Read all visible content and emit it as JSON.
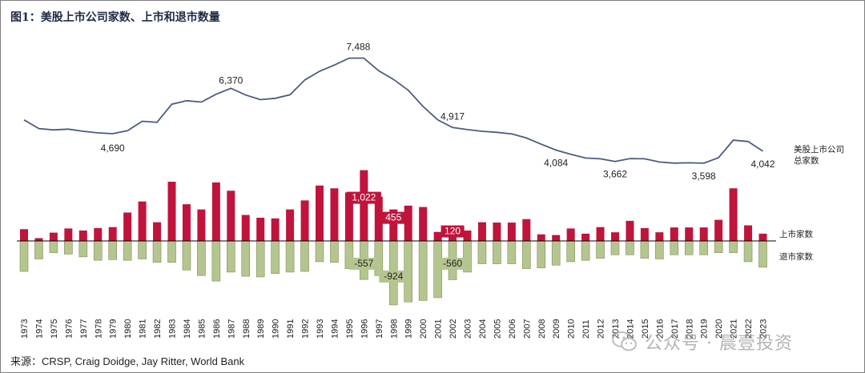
{
  "title": "图1：美股上市公司家数、上市和退市数量",
  "source": "来源：CRSP, Craig Doidge, Jay Ritter, World Bank",
  "watermark": "公众号 · 晨壹投资",
  "colors": {
    "line": "#4a5d7e",
    "listings": "#c0143c",
    "delistings": "#b5c58f",
    "delisting_edge": "#7e8f55",
    "axis": "#000000"
  },
  "icons": {
    "watermark": "wechat-icon"
  },
  "chart_data": {
    "type": "bar+line",
    "x": [
      "1973",
      "1974",
      "1975",
      "1976",
      "1977",
      "1978",
      "1979",
      "1980",
      "1981",
      "1982",
      "1983",
      "1984",
      "1985",
      "1986",
      "1987",
      "1988",
      "1989",
      "1990",
      "1991",
      "1992",
      "1993",
      "1994",
      "1995",
      "1996",
      "1997",
      "1998",
      "1999",
      "2000",
      "2001",
      "2002",
      "2003",
      "2004",
      "2005",
      "2006",
      "2007",
      "2008",
      "2009",
      "2010",
      "2011",
      "2012",
      "2013",
      "2014",
      "2015",
      "2016",
      "2017",
      "2018",
      "2019",
      "2020",
      "2021",
      "2022",
      "2023"
    ],
    "series": [
      {
        "name": "美股上市公司总家数",
        "type": "line",
        "values": [
          5200,
          4880,
          4830,
          4860,
          4780,
          4720,
          4690,
          4800,
          5150,
          5110,
          5780,
          5910,
          5860,
          6150,
          6370,
          6120,
          5950,
          6000,
          6130,
          6680,
          7000,
          7230,
          7488,
          7488,
          7020,
          6700,
          6300,
          5700,
          5200,
          4917,
          4840,
          4780,
          4740,
          4680,
          4530,
          4300,
          4084,
          3930,
          3790,
          3760,
          3662,
          3770,
          3760,
          3640,
          3600,
          3610,
          3598,
          3800,
          4450,
          4400,
          4042
        ]
      },
      {
        "name": "上市家数",
        "type": "bar",
        "values": [
          170,
          40,
          120,
          180,
          150,
          185,
          200,
          410,
          570,
          270,
          855,
          530,
          455,
          845,
          725,
          375,
          335,
          325,
          455,
          585,
          800,
          760,
          700,
          1022,
          640,
          455,
          510,
          490,
          130,
          120,
          150,
          270,
          265,
          265,
          315,
          95,
          85,
          180,
          105,
          200,
          125,
          290,
          185,
          125,
          195,
          195,
          195,
          305,
          760,
          225,
          105
        ]
      },
      {
        "name": "退市家数",
        "type": "bar",
        "values": [
          -440,
          -260,
          -170,
          -190,
          -230,
          -280,
          -270,
          -280,
          -260,
          -310,
          -310,
          -420,
          -500,
          -580,
          -450,
          -510,
          -520,
          -470,
          -450,
          -440,
          -300,
          -310,
          -400,
          -557,
          -500,
          -924,
          -880,
          -860,
          -820,
          -560,
          -450,
          -330,
          -330,
          -330,
          -400,
          -390,
          -350,
          -300,
          -280,
          -250,
          -200,
          -200,
          -250,
          -260,
          -200,
          -200,
          -200,
          -170,
          -170,
          -300,
          -380
        ]
      }
    ],
    "annotations": [
      {
        "x": "1979",
        "series": "line",
        "text": "4,690"
      },
      {
        "x": "1987",
        "series": "line",
        "text": "6,370"
      },
      {
        "x": "1996",
        "series": "line",
        "text": "7,488"
      },
      {
        "x": "2002",
        "series": "line",
        "text": "4,917"
      },
      {
        "x": "2009",
        "series": "line",
        "text": "4,084"
      },
      {
        "x": "2013",
        "series": "line",
        "text": "3,662"
      },
      {
        "x": "2019",
        "series": "line",
        "text": "3,598"
      },
      {
        "x": "2023",
        "series": "line",
        "text": "4,042"
      },
      {
        "x": "1996",
        "series": "listings",
        "text": "1,022"
      },
      {
        "x": "1998",
        "series": "listings",
        "text": "455"
      },
      {
        "x": "2002",
        "series": "listings",
        "text": "120"
      },
      {
        "x": "1996",
        "series": "delistings",
        "text": "-557"
      },
      {
        "x": "1998",
        "series": "delistings",
        "text": "-924"
      },
      {
        "x": "2002",
        "series": "delistings",
        "text": "-560"
      }
    ],
    "series_labels": {
      "line": [
        "美股上市公司",
        "总家数"
      ],
      "listings": "上市家数",
      "delistings": "退市家数"
    },
    "legend": "right",
    "grid": false
  }
}
